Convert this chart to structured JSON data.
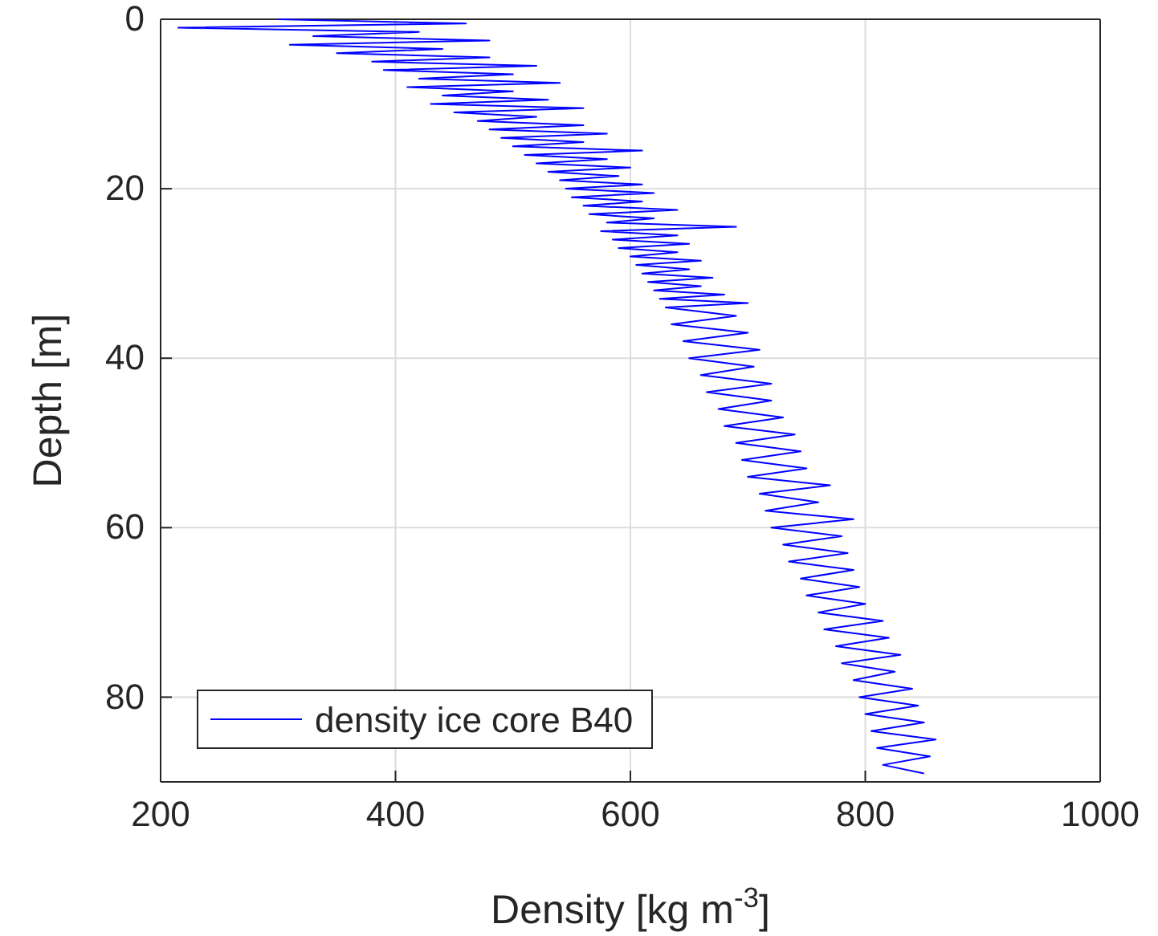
{
  "chart_data": {
    "type": "line",
    "xlabel": "Density [kg m$^{-3}$]",
    "ylabel": "Depth [m]",
    "xlim": [
      200,
      1000
    ],
    "xticks": [
      200,
      400,
      600,
      800,
      1000
    ],
    "ylim": [
      90,
      0
    ],
    "yticks": [
      0,
      20,
      40,
      60,
      80
    ],
    "grid": true,
    "legend": "bottom left",
    "marker": "none",
    "line_style": "solid",
    "series": [
      {
        "name": "density ice core B40",
        "color": "#0000ff",
        "x": [
          300,
          460,
          215,
          420,
          330,
          480,
          310,
          440,
          350,
          480,
          380,
          520,
          390,
          500,
          420,
          540,
          410,
          500,
          440,
          530,
          430,
          560,
          450,
          520,
          470,
          560,
          480,
          580,
          490,
          560,
          500,
          610,
          510,
          580,
          520,
          600,
          530,
          590,
          540,
          610,
          545,
          620,
          550,
          610,
          560,
          640,
          565,
          620,
          580,
          690,
          575,
          640,
          585,
          650,
          590,
          640,
          600,
          660,
          605,
          650,
          610,
          670,
          615,
          660,
          620,
          680,
          625,
          700,
          630,
          690,
          635,
          700,
          645,
          710,
          650,
          705,
          660,
          720,
          665,
          720,
          675,
          730,
          680,
          740,
          690,
          745,
          695,
          750,
          700,
          770,
          710,
          760,
          715,
          790,
          720,
          780,
          730,
          785,
          735,
          790,
          745,
          795,
          750,
          800,
          760,
          815,
          765,
          820,
          775,
          830,
          780,
          825,
          790,
          840,
          795,
          845,
          800,
          850,
          805,
          860,
          810,
          855,
          815,
          850
        ],
        "values": [
          0,
          0.5,
          1,
          1.5,
          2,
          2.5,
          3,
          3.5,
          4,
          4.5,
          5,
          5.5,
          6,
          6.5,
          7,
          7.5,
          8,
          8.5,
          9,
          9.5,
          10,
          10.5,
          11,
          11.5,
          12,
          12.5,
          13,
          13.5,
          14,
          14.5,
          15,
          15.5,
          16,
          16.5,
          17,
          17.5,
          18,
          18.5,
          19,
          19.5,
          20,
          20.5,
          21,
          21.5,
          22,
          22.5,
          23,
          23.5,
          24,
          24.5,
          25,
          25.5,
          26,
          26.5,
          27,
          27.5,
          28,
          28.5,
          29,
          29.5,
          30,
          30.5,
          31,
          31.5,
          32,
          32.5,
          33,
          33.5,
          34,
          35,
          36,
          37,
          38,
          39,
          40,
          41,
          42,
          43,
          44,
          45,
          46,
          47,
          48,
          49,
          50,
          51,
          52,
          53,
          54,
          55,
          56,
          57,
          58,
          59,
          60,
          61,
          62,
          63,
          64,
          65,
          66,
          67,
          68,
          69,
          70,
          71,
          72,
          73,
          74,
          75,
          76,
          77,
          78,
          79,
          80,
          81,
          82,
          83,
          84,
          85,
          86,
          87,
          88,
          89
        ]
      }
    ]
  }
}
